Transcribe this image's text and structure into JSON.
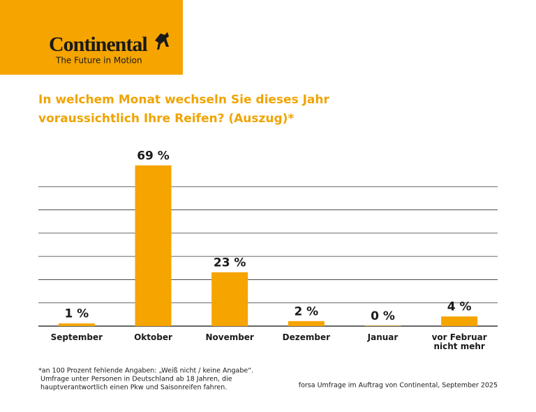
{
  "header": {
    "logo": "Continental",
    "tagline": "The Future in Motion"
  },
  "chart_data": {
    "type": "bar",
    "title_lines": [
      "In welchem Monat wechseln Sie dieses Jahr",
      "voraussichtlich Ihre Reifen? (Auszug)*"
    ],
    "categories": [
      "September",
      "Oktober",
      "November",
      "Dezember",
      "Januar",
      "vor Februar nicht mehr"
    ],
    "values": [
      1,
      69,
      23,
      2,
      0,
      4
    ],
    "value_labels": [
      "1 %",
      "69 %",
      "23 %",
      "2 %",
      "0 %",
      "4 %"
    ],
    "color": "#f5a400",
    "ylim": [
      0,
      70
    ],
    "yticks": [
      0,
      10,
      20,
      30,
      40,
      50,
      60
    ],
    "grid": true
  },
  "footnotes": [
    "*an 100 Prozent fehlende Angaben: „Weiß nicht / keine Angabe“.",
    "Umfrage unter Personen in Deutschland ab 18 Jahren, die",
    "hauptverantwortlich einen Pkw und Saisonreifen fahren."
  ],
  "source": "forsa Umfrage im Auftrag von Continental, September 2025"
}
